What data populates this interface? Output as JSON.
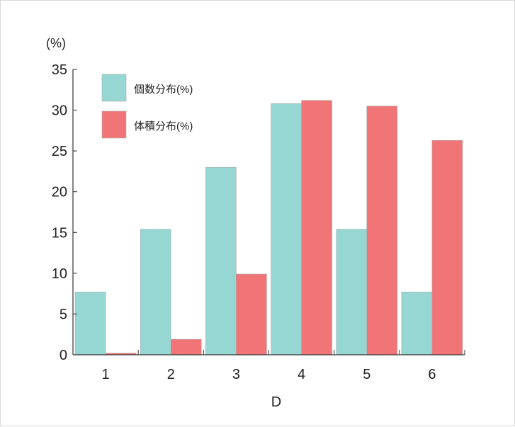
{
  "chart_data": {
    "type": "bar",
    "ylabel": "(%)",
    "xlabel": "D",
    "categories": [
      "1",
      "2",
      "3",
      "4",
      "5",
      "6"
    ],
    "ylim": [
      0,
      35
    ],
    "yticks": [
      0,
      5,
      10,
      15,
      20,
      25,
      30,
      35
    ],
    "grid": false,
    "legend_placement": "top-left",
    "series": [
      {
        "name": "個数分布(%)",
        "color": "#96d7d3",
        "values": [
          7.7,
          15.4,
          23.0,
          30.8,
          15.4,
          7.7
        ]
      },
      {
        "name": "体積分布(%)",
        "color": "#f17576",
        "values": [
          0.2,
          1.9,
          9.9,
          31.2,
          30.5,
          26.3
        ]
      }
    ]
  }
}
